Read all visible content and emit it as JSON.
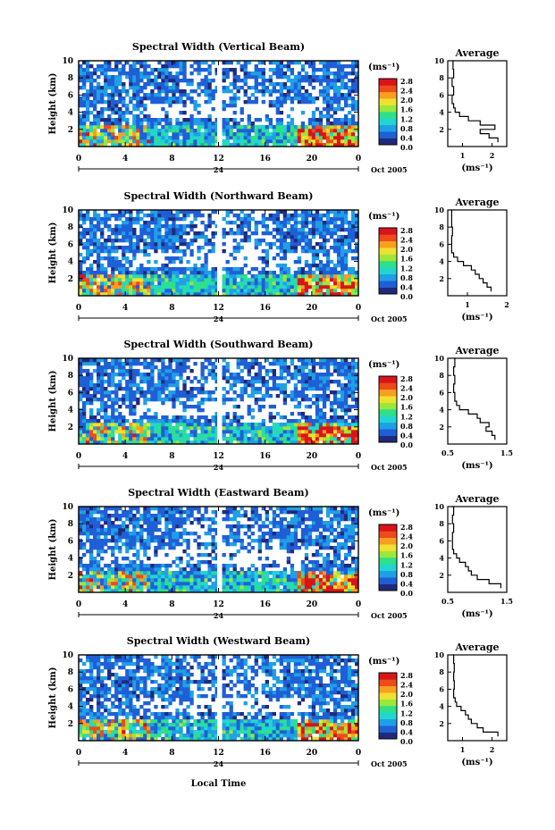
{
  "x_axis_label": "Local Time",
  "date_label": "Oct 2005",
  "midnight_label": "24",
  "units_label": "(ms⁻¹)",
  "average_title": "Average",
  "colorscale": [
    "#1f2a7a",
    "#1f5fd6",
    "#1f9fe6",
    "#22d6d0",
    "#2ee08a",
    "#9be83a",
    "#f0e030",
    "#f7a020",
    "#ee4a1a",
    "#d8141a"
  ],
  "chart_data": [
    {
      "type": "heatmap",
      "title": "Spectral Width (Vertical Beam)",
      "ylabel": "Height (km)",
      "xlim": [
        0,
        24
      ],
      "ylim": [
        0,
        10
      ],
      "x_ticks": [
        "0",
        "4",
        "8",
        "12",
        "16",
        "20",
        "0"
      ],
      "y_ticks": [
        "2",
        "4",
        "6",
        "8",
        "10"
      ],
      "colorbar": {
        "ticks": [
          "2.8",
          "2.4",
          "2.0",
          "1.6",
          "1.2",
          "0.8",
          "0.4",
          "0.0"
        ],
        "range": [
          0,
          2.8
        ]
      },
      "average_profile": {
        "xlim": [
          0.5,
          2.5
        ],
        "x_ticks": [
          "1",
          "2"
        ],
        "xlabel": "(ms⁻¹)",
        "ylim": [
          0,
          10
        ],
        "y_ticks": [
          "2",
          "4",
          "6",
          "8",
          "10"
        ],
        "heights": [
          0.5,
          1.0,
          1.5,
          2.0,
          2.5,
          3.0,
          3.5,
          4.0,
          4.5,
          5.0,
          6.0,
          7.0,
          8.0,
          9.0,
          10.0
        ],
        "values": [
          2.2,
          1.9,
          1.6,
          2.1,
          1.6,
          1.2,
          0.9,
          0.75,
          0.7,
          0.65,
          0.7,
          0.65,
          0.7,
          0.68,
          0.7
        ]
      }
    },
    {
      "type": "heatmap",
      "title": "Spectral Width (Northward Beam)",
      "ylabel": "Height (km)",
      "xlim": [
        0,
        24
      ],
      "ylim": [
        0,
        10
      ],
      "x_ticks": [
        "0",
        "4",
        "8",
        "12",
        "16",
        "20",
        "0"
      ],
      "y_ticks": [
        "2",
        "4",
        "6",
        "8",
        "10"
      ],
      "colorbar": {
        "ticks": [
          "2.8",
          "2.4",
          "2.0",
          "1.6",
          "1.2",
          "0.8",
          "0.4",
          "0.0"
        ],
        "range": [
          0,
          2.8
        ]
      },
      "average_profile": {
        "xlim": [
          0.5,
          2.0
        ],
        "x_ticks": [
          "1",
          "2"
        ],
        "xlabel": "(ms⁻¹)",
        "ylim": [
          0,
          10
        ],
        "y_ticks": [
          "2",
          "4",
          "6",
          "8",
          "10"
        ],
        "heights": [
          0.5,
          1.0,
          1.5,
          2.0,
          2.5,
          3.0,
          3.5,
          4.0,
          4.5,
          5.0,
          6.0,
          7.0,
          8.0,
          9.0,
          10.0
        ],
        "values": [
          1.6,
          1.5,
          1.4,
          1.3,
          1.2,
          1.1,
          0.9,
          0.75,
          0.65,
          0.6,
          0.6,
          0.62,
          0.6,
          0.6,
          0.62
        ]
      }
    },
    {
      "type": "heatmap",
      "title": "Spectral Width (Southward Beam)",
      "ylabel": "Height (km)",
      "xlim": [
        0,
        24
      ],
      "ylim": [
        0,
        10
      ],
      "x_ticks": [
        "0",
        "4",
        "8",
        "12",
        "16",
        "20",
        "0"
      ],
      "y_ticks": [
        "2",
        "4",
        "6",
        "8",
        "10"
      ],
      "colorbar": {
        "ticks": [
          "2.8",
          "2.4",
          "2.0",
          "1.6",
          "1.2",
          "0.8",
          "0.4",
          "0.0"
        ],
        "range": [
          0,
          2.8
        ]
      },
      "average_profile": {
        "xlim": [
          0.5,
          1.5
        ],
        "x_ticks": [
          "0.5",
          "1.5"
        ],
        "xlabel": "(ms⁻¹)",
        "ylim": [
          0,
          10
        ],
        "y_ticks": [
          "2",
          "4",
          "6",
          "8",
          "10"
        ],
        "heights": [
          0.5,
          1.0,
          1.5,
          2.0,
          2.5,
          3.0,
          3.5,
          4.0,
          4.5,
          5.0,
          6.0,
          7.0,
          8.0,
          9.0,
          10.0
        ],
        "values": [
          1.3,
          1.25,
          1.15,
          1.2,
          1.05,
          1.0,
          0.85,
          0.7,
          0.65,
          0.62,
          0.6,
          0.62,
          0.6,
          0.62,
          0.6
        ]
      }
    },
    {
      "type": "heatmap",
      "title": "Spectral Width (Eastward Beam)",
      "ylabel": "Height (km)",
      "xlim": [
        0,
        24
      ],
      "ylim": [
        0,
        10
      ],
      "x_ticks": [
        "0",
        "4",
        "8",
        "12",
        "16",
        "20",
        "0"
      ],
      "y_ticks": [
        "2",
        "4",
        "6",
        "8",
        "10"
      ],
      "colorbar": {
        "ticks": [
          "2.8",
          "2.4",
          "2.0",
          "1.6",
          "1.2",
          "0.8",
          "0.4",
          "0.0"
        ],
        "range": [
          0,
          2.8
        ]
      },
      "average_profile": {
        "xlim": [
          0.5,
          1.5
        ],
        "x_ticks": [
          "0.5",
          "1.5"
        ],
        "xlabel": "(ms⁻¹)",
        "ylim": [
          0,
          10
        ],
        "y_ticks": [
          "2",
          "4",
          "6",
          "8",
          "10"
        ],
        "heights": [
          0.5,
          1.0,
          1.5,
          2.0,
          2.5,
          3.0,
          3.5,
          4.0,
          4.5,
          5.0,
          6.0,
          7.0,
          8.0,
          9.0,
          10.0
        ],
        "values": [
          1.4,
          1.2,
          1.0,
          0.9,
          0.85,
          0.8,
          0.7,
          0.65,
          0.6,
          0.58,
          0.58,
          0.6,
          0.58,
          0.6,
          0.58
        ]
      }
    },
    {
      "type": "heatmap",
      "title": "Spectral Width (Westward Beam)",
      "ylabel": "Height (km)",
      "xlim": [
        0,
        24
      ],
      "ylim": [
        0,
        10
      ],
      "x_ticks": [
        "0",
        "4",
        "8",
        "12",
        "16",
        "20",
        "0"
      ],
      "y_ticks": [
        "2",
        "4",
        "6",
        "8",
        "10"
      ],
      "colorbar": {
        "ticks": [
          "2.8",
          "2.4",
          "2.0",
          "1.6",
          "1.2",
          "0.8",
          "0.4",
          "0.0"
        ],
        "range": [
          0,
          2.8
        ]
      },
      "average_profile": {
        "xlim": [
          0.5,
          2.5
        ],
        "x_ticks": [
          "1",
          "2"
        ],
        "xlabel": "(ms⁻¹)",
        "ylim": [
          0,
          10
        ],
        "y_ticks": [
          "2",
          "4",
          "6",
          "8",
          "10"
        ],
        "heights": [
          0.5,
          1.0,
          1.5,
          2.0,
          2.5,
          3.0,
          3.5,
          4.0,
          4.5,
          5.0,
          6.0,
          7.0,
          8.0,
          9.0,
          10.0
        ],
        "values": [
          2.2,
          1.7,
          1.5,
          1.3,
          1.2,
          1.1,
          0.95,
          0.8,
          0.75,
          0.7,
          0.72,
          0.7,
          0.72,
          0.7,
          0.72
        ]
      }
    }
  ]
}
